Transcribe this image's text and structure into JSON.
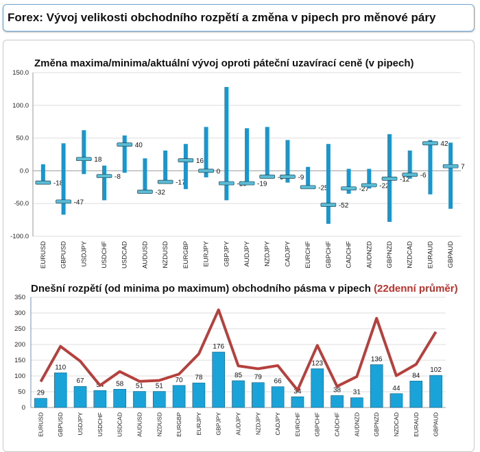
{
  "header": {
    "title": "Forex: Vývoj velikosti obchodního rozpětí a změna v pipech pro měnové páry"
  },
  "chart_data": [
    {
      "type": "range-bar",
      "title": "Změna maxima/minima/aktuální vývoj oproti páteční uzavírací ceně (v pipech)",
      "categories": [
        "EURUSD",
        "GBPUSD",
        "USDJPY",
        "USDCHF",
        "USDCAD",
        "AUDUSD",
        "NZDUSD",
        "EURGBP",
        "EURJPY",
        "GBPJPY",
        "AUDJPY",
        "NZDJPY",
        "CADJPY",
        "EURCHF",
        "GBPCHF",
        "CADCHF",
        "AUDNZD",
        "GBPNZD",
        "NZDCAD",
        "EURAUD",
        "GBPAUD"
      ],
      "high": [
        10,
        42,
        62,
        8,
        54,
        19,
        31,
        41,
        67,
        128,
        65,
        67,
        47,
        6,
        41,
        3,
        3,
        56,
        31,
        47,
        43
      ],
      "low": [
        -18,
        -67,
        -5,
        -45,
        -3,
        -32,
        -17,
        -28,
        -10,
        -45,
        -19,
        -11,
        -18,
        -25,
        -81,
        -35,
        -27,
        -78,
        -12,
        -36,
        -58
      ],
      "current": [
        -18,
        -47,
        18,
        -8,
        40,
        -32,
        -17,
        16,
        0,
        -19,
        -19,
        -9,
        -9,
        -25,
        -52,
        -27,
        -22,
        -12,
        -6,
        42,
        7
      ],
      "ylim": [
        -100,
        150
      ],
      "yticks": [
        "150.0",
        "100.0",
        "50.0",
        "0.0",
        "-50.0",
        "-100.0"
      ],
      "grid": true,
      "colors": {
        "bar": "#1a96cf",
        "marker": "#5bbcd6"
      }
    },
    {
      "type": "bar+line",
      "title": "Dnešní rozpětí (od minima po maximum) obchodního pásma v pipech",
      "title_highlight": "(22denní průměr)",
      "categories": [
        "EURUSD",
        "GBPUSD",
        "USDJPY",
        "USDCHF",
        "USDCAD",
        "AUDUSD",
        "NZDUSD",
        "EURGBP",
        "EURJPY",
        "GBPJPY",
        "AUDJPY",
        "NZDJPY",
        "CADJPY",
        "EURCHF",
        "GBPCHF",
        "CADCHF",
        "AUDNZD",
        "GBPNZD",
        "NZDCAD",
        "EURAUD",
        "GBPAUD"
      ],
      "values": [
        29,
        110,
        67,
        54,
        58,
        51,
        51,
        70,
        78,
        176,
        85,
        79,
        66,
        34,
        123,
        38,
        31,
        136,
        44,
        84,
        102
      ],
      "avg22": [
        82,
        194,
        147,
        70,
        114,
        83,
        86,
        106,
        170,
        310,
        132,
        123,
        133,
        55,
        197,
        67,
        98,
        283,
        101,
        137,
        240
      ],
      "ylim": [
        0,
        350
      ],
      "yticks": [
        "350",
        "300",
        "250",
        "200",
        "150",
        "100",
        "50",
        "0"
      ],
      "grid": true,
      "colors": {
        "bar": "#1aa3d8",
        "line": "#b5403c",
        "highlight": "#c0302a"
      }
    }
  ]
}
